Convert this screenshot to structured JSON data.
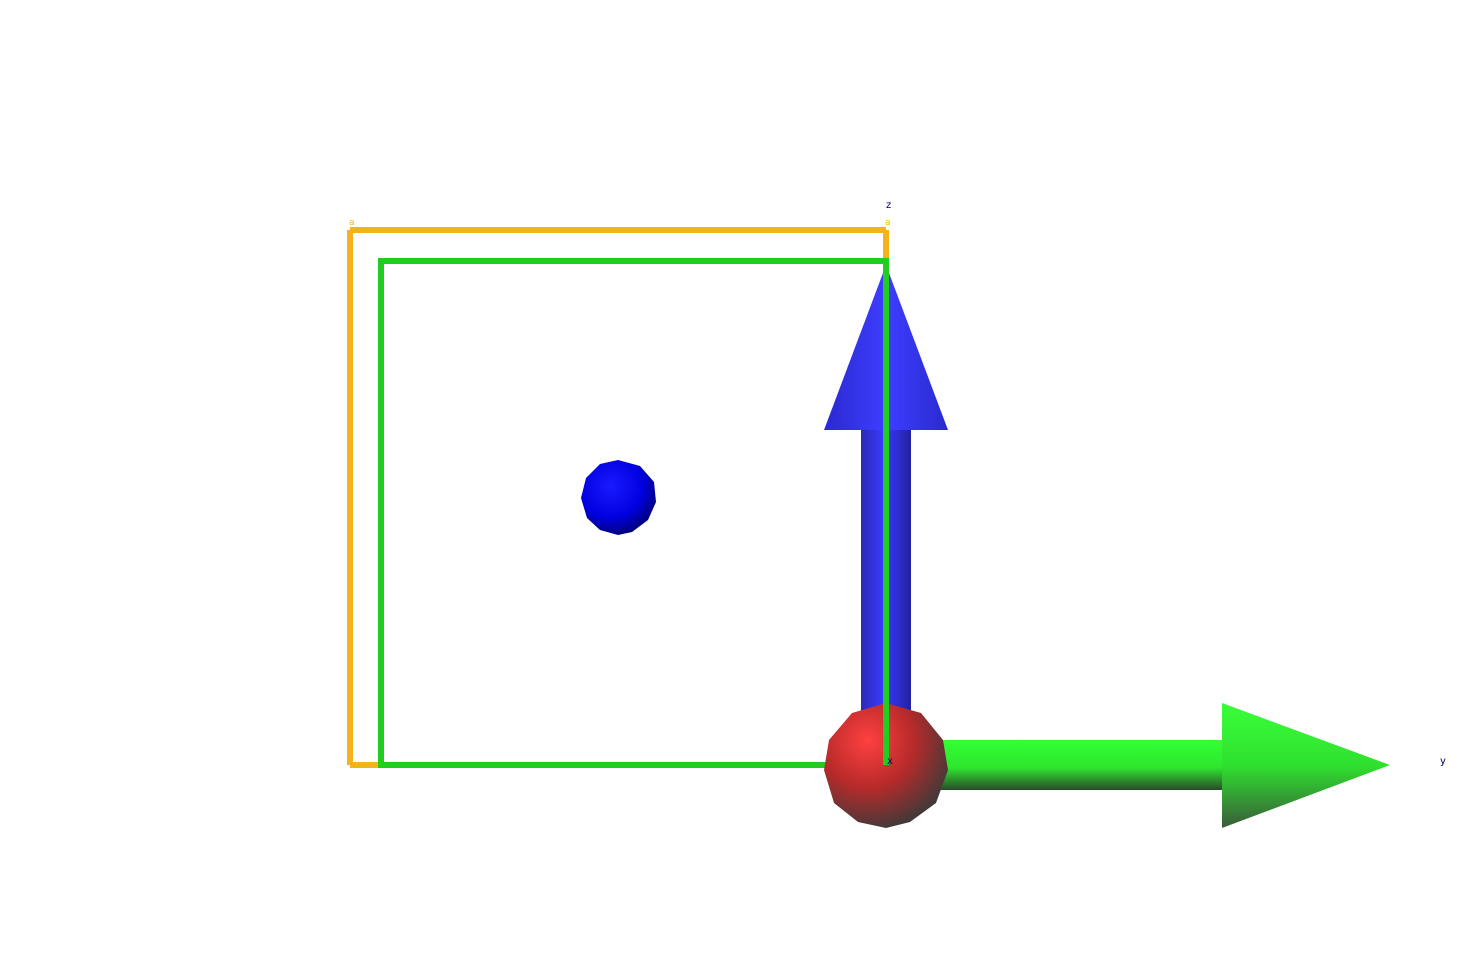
{
  "viewport": {
    "background": "#ffffff"
  },
  "axes": {
    "x_label": "x",
    "y_label": "y",
    "z_label": "z",
    "x_color": "#e03030",
    "y_color": "#33ff33",
    "z_color": "#3333ff"
  },
  "unit_cell_outer": {
    "color": "#f5b21a",
    "corner_labels": [
      "a",
      "a"
    ]
  },
  "unit_cell_inner": {
    "color": "#22cc22"
  },
  "atom": {
    "color": "#0000ee"
  },
  "label_color": "#000066"
}
